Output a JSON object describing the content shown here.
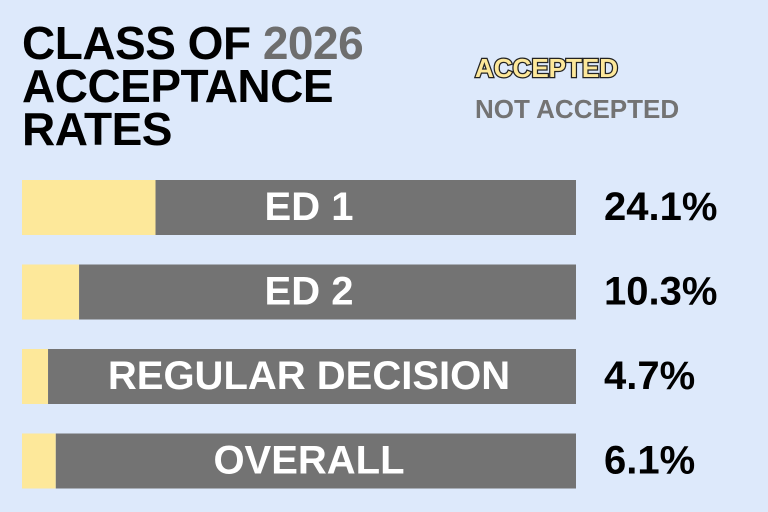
{
  "chart_data": {
    "type": "stacked-bar-horizontal",
    "title": {
      "lead": "CLASS OF",
      "year": "2026",
      "rest": "ACCEPTANCE RATES"
    },
    "categories": [
      "ED 1",
      "ED 2",
      "REGULAR DECISION",
      "OVERALL"
    ],
    "series": [
      {
        "name": "ACCEPTED",
        "color": "#fde89a",
        "values": [
          24.1,
          10.3,
          4.7,
          6.1
        ],
        "value_labels": [
          "24.1%",
          "10.3%",
          "4.7%",
          "6.1%"
        ]
      },
      {
        "name": "NOT ACCEPTED",
        "color": "#737373",
        "values": [
          75.9,
          89.7,
          95.3,
          93.9
        ]
      }
    ],
    "xlim": [
      0,
      100
    ]
  }
}
